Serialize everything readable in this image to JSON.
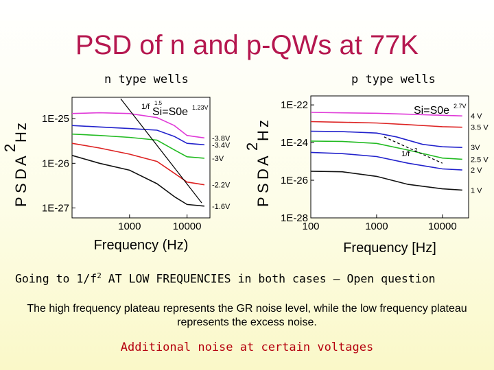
{
  "slide": {
    "title": "PSD of n and p-QWs at 77K",
    "going_prefix": "Going to 1/f",
    "going_sup": "2",
    "going_suffix": " AT LOW FREQUENCIES in both cases – Open question",
    "paragraph": "The high frequency plateau represents the GR noise level, while the low frequency plateau represents the excess noise.",
    "footer": "Additional noise at certain voltages"
  },
  "chart_data": [
    {
      "type": "line",
      "title": "n type wells",
      "xlabel": "Frequency (Hz)",
      "ylabel": "PSD (A²/Hz)",
      "ylabel_letters": [
        "P",
        "S",
        "D",
        "A",
        "2",
        "H",
        "z"
      ],
      "x_scale": "log",
      "y_scale": "log",
      "xlim": [
        100,
        25000
      ],
      "ylim": [
        6e-28,
        3e-25
      ],
      "x_ticks": [
        {
          "v": 1000,
          "label": "1000"
        },
        {
          "v": 10000,
          "label": "10000"
        }
      ],
      "y_ticks": [
        {
          "v": 1e-25,
          "label": "1E-25"
        },
        {
          "v": 1e-26,
          "label": "1E-26"
        },
        {
          "v": 1e-27,
          "label": "1E-27"
        }
      ],
      "annotations": {
        "formula_main": "Si=S0e",
        "formula_exp": "1.23V",
        "slope_label": "1/f",
        "slope_exp": "1.5"
      },
      "series": [
        {
          "name": "-3.8V",
          "color": "#e03ad8",
          "x": [
            100,
            300,
            1000,
            3000,
            6000,
            10000,
            20000
          ],
          "y": [
            1.3e-25,
            1.35e-25,
            1.3e-25,
            1.05e-25,
            7e-26,
            4.2e-26,
            3.7e-26
          ]
        },
        {
          "name": "-3.4V",
          "color": "#2222cc",
          "x": [
            100,
            300,
            1000,
            3000,
            6000,
            10000,
            20000
          ],
          "y": [
            7e-26,
            6.5e-26,
            6e-26,
            5.5e-26,
            4e-26,
            2.8e-26,
            2.6e-26
          ]
        },
        {
          "name": "-3V",
          "color": "#22bb22",
          "x": [
            100,
            300,
            1000,
            3000,
            6000,
            10000,
            20000
          ],
          "y": [
            4.5e-26,
            4.2e-26,
            3.8e-26,
            3.3e-26,
            2e-26,
            1.4e-26,
            1.3e-26
          ]
        },
        {
          "name": "-2.2V",
          "color": "#dd2222",
          "x": [
            100,
            300,
            1000,
            3000,
            6000,
            10000,
            20000
          ],
          "y": [
            2.8e-26,
            2.2e-26,
            1.6e-26,
            1.1e-26,
            6e-27,
            3.8e-27,
            3.3e-27
          ]
        },
        {
          "name": "-1.6V",
          "color": "#111111",
          "x": [
            100,
            300,
            1000,
            3000,
            6000,
            10000,
            20000
          ],
          "y": [
            1.5e-26,
            1e-26,
            7e-27,
            3.5e-27,
            1.8e-27,
            1.2e-27,
            1.1e-27
          ]
        }
      ],
      "fit_line": {
        "x": [
          700,
          18000
        ],
        "y": [
          2.8e-25,
          1.3e-27
        ]
      }
    },
    {
      "type": "line",
      "title": "p type wells",
      "xlabel": "Frequency [Hz]",
      "ylabel": "PSD [A²/Hz]",
      "ylabel_letters": [
        "P",
        "S",
        "D",
        "A",
        "2",
        "H",
        "z"
      ],
      "x_scale": "log",
      "y_scale": "log",
      "xlim": [
        100,
        25000
      ],
      "ylim": [
        1e-28,
        3e-22
      ],
      "x_ticks": [
        {
          "v": 100,
          "label": "100"
        },
        {
          "v": 1000,
          "label": "1000"
        },
        {
          "v": 10000,
          "label": "10000"
        }
      ],
      "y_ticks": [
        {
          "v": 1e-22,
          "label": "1E-22"
        },
        {
          "v": 1e-24,
          "label": "1E-24"
        },
        {
          "v": 1e-26,
          "label": "1E-26"
        },
        {
          "v": 1e-28,
          "label": "1E-28"
        }
      ],
      "annotations": {
        "formula_main": "Si=S0e",
        "formula_exp": "2.7V",
        "slope_label": "1/f",
        "slope_exp": "2"
      },
      "series": [
        {
          "name": "4 V",
          "color": "#e03ad8",
          "x": [
            100,
            300,
            1000,
            3000,
            10000,
            20000
          ],
          "y": [
            4e-23,
            3.8e-23,
            3.6e-23,
            3.2e-23,
            2.8e-23,
            2.6e-23
          ]
        },
        {
          "name": "3.5 V",
          "color": "#dd2222",
          "x": [
            100,
            300,
            1000,
            3000,
            10000,
            20000
          ],
          "y": [
            1.3e-23,
            1.2e-23,
            1.1e-23,
            9e-24,
            7e-24,
            6.5e-24
          ]
        },
        {
          "name": "3V",
          "color": "#2222cc",
          "x": [
            100,
            300,
            1000,
            2000,
            5000,
            10000,
            20000
          ],
          "y": [
            4e-24,
            3.8e-24,
            3.2e-24,
            2e-24,
            8e-25,
            6e-25,
            5.5e-25
          ]
        },
        {
          "name": "2.5 V",
          "color": "#22bb22",
          "x": [
            100,
            300,
            1000,
            3000,
            10000,
            20000
          ],
          "y": [
            1.2e-24,
            1.15e-24,
            9e-25,
            4e-25,
            1.5e-25,
            1.3e-25
          ]
        },
        {
          "name": "2 V",
          "color": "#2222cc",
          "x": [
            100,
            300,
            1000,
            3000,
            10000,
            20000
          ],
          "y": [
            3e-25,
            2.6e-25,
            1.8e-25,
            8e-26,
            4e-26,
            3.5e-26
          ]
        },
        {
          "name": "1 V",
          "color": "#111111",
          "x": [
            100,
            300,
            1000,
            3000,
            10000,
            20000
          ],
          "y": [
            3e-26,
            2.8e-26,
            1.6e-26,
            6e-27,
            3.5e-27,
            3e-27
          ]
        }
      ],
      "fit_line": {
        "x": [
          1300,
          10000
        ],
        "y": [
          2e-24,
          8e-26
        ]
      }
    }
  ]
}
